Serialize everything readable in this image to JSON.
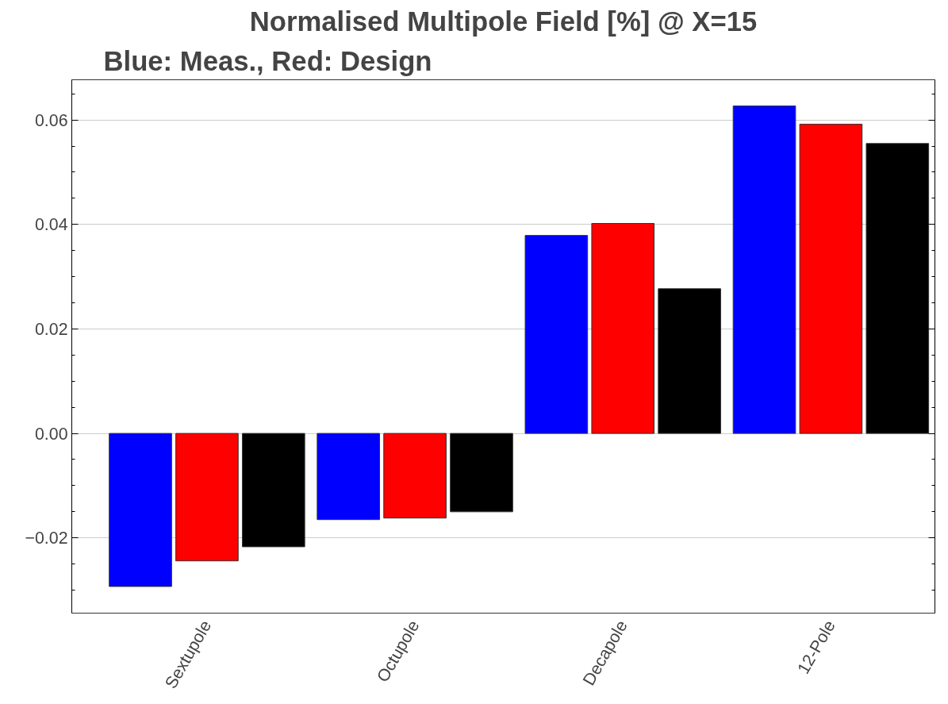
{
  "chart_data": {
    "type": "bar",
    "title": "Normalised Multipole Field [%] @ X=15",
    "subtitle": "Blue: Meas., Red: Design",
    "categories": [
      "Sextupole",
      "Octupole",
      "Decapole",
      "12-Pole"
    ],
    "series": [
      {
        "color": "#0000ff",
        "values": [
          -0.0293,
          -0.0165,
          0.0379,
          0.0627
        ]
      },
      {
        "color": "#ff0000",
        "values": [
          -0.0244,
          -0.0162,
          0.0402,
          0.0592
        ]
      },
      {
        "color": "#000000",
        "values": [
          -0.0217,
          -0.015,
          0.0277,
          0.0555
        ]
      }
    ],
    "ylim": [
      -0.0344,
      0.0677
    ],
    "yticks": [
      {
        "value": -0.03,
        "label": null
      },
      {
        "value": -0.025,
        "label": null
      },
      {
        "value": -0.02,
        "label": "−0.02"
      },
      {
        "value": -0.015,
        "label": null
      },
      {
        "value": -0.01,
        "label": null
      },
      {
        "value": -0.005,
        "label": null
      },
      {
        "value": 0,
        "label": "0.00"
      },
      {
        "value": 0.005,
        "label": null
      },
      {
        "value": 0.01,
        "label": null
      },
      {
        "value": 0.015,
        "label": null
      },
      {
        "value": 0.02,
        "label": "0.02"
      },
      {
        "value": 0.025,
        "label": null
      },
      {
        "value": 0.03,
        "label": null
      },
      {
        "value": 0.035,
        "label": null
      },
      {
        "value": 0.04,
        "label": "0.04"
      },
      {
        "value": 0.045,
        "label": null
      },
      {
        "value": 0.05,
        "label": null
      },
      {
        "value": 0.055,
        "label": null
      },
      {
        "value": 0.06,
        "label": "0.06"
      },
      {
        "value": 0.065,
        "label": null
      }
    ],
    "grid": "y"
  }
}
